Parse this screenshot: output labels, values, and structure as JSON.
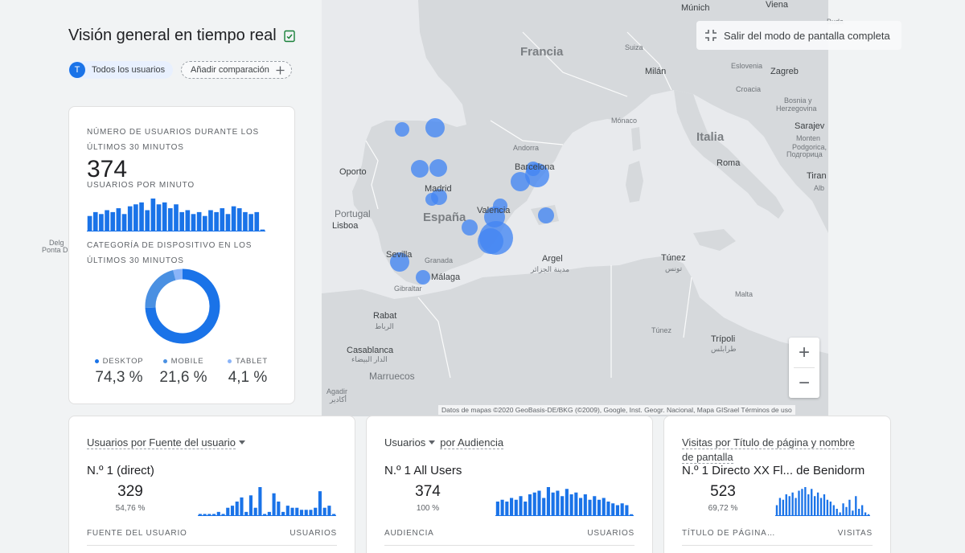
{
  "header": {
    "title": "Visión general en tiempo real",
    "chip_avatar": "T",
    "chip_label": "Todos los usuarios",
    "compare_label": "Añadir comparación"
  },
  "map": {
    "exit_fullscreen_label": "Salir del modo de pantalla completa",
    "zoom_in": "+",
    "zoom_out": "−",
    "attribution": "Datos de mapas ©2020 GeoBasis-DE/BKG (©2009), Google, Inst. Geogr. Nacional, Mapa GISrael   Términos de uso",
    "labels": {
      "munich": "Múnich",
      "viena": "Viena",
      "buda": "Buda",
      "francia": "Francia",
      "suiza": "Suiza",
      "eslovenia": "Eslovenia",
      "zagreb": "Zagreb",
      "milan": "Milán",
      "croacia": "Croacia",
      "bosnia1": "Bosnia y",
      "bosnia2": "Herzegovina",
      "monaco": "Mónaco",
      "sarajevo": "Sarajev",
      "montenegro": "Monten",
      "podgorica1": "Podgorica,",
      "podgorica2": "Подгорица",
      "italia": "Italia",
      "andorra": "Andorra",
      "barcelona": "Barcelona",
      "roma": "Roma",
      "tirana": "Tiran",
      "alb": "Alb",
      "oporto": "Oporto",
      "madrid": "Madrid",
      "portugal": "Portugal",
      "espana": "España",
      "valencia": "Valencia",
      "lisboa": "Lisboa",
      "sevilla": "Sevilla",
      "granada": "Granada",
      "malaga": "Málaga",
      "gibraltar": "Gibraltar",
      "argel1": "Argel",
      "argel2": "مدينة الجزائر",
      "tunez1": "Túnez",
      "tunez2": "تونس",
      "malta": "Malta",
      "rabat1": "Rabat",
      "rabat2": "الرباط",
      "tunez_country": "Túnez",
      "tripoli1": "Trípoli",
      "tripoli2": "طرابلس",
      "casablanca1": "Casablanca",
      "casablanca2": "الدار البيضاء",
      "marruecos": "Marruecos",
      "agadir1": "Agadir",
      "agadir2": "أكادير",
      "delgada1": "Delg",
      "delgada2": "Ponta D"
    },
    "bubble_color": "#4285f4"
  },
  "summary": {
    "users_caption": "NÚMERO DE USUARIOS DURANTE LOS ÚLTIMOS 30 MINUTOS",
    "users_value": "374",
    "per_minute_caption": "USUARIOS POR MINUTO",
    "per_minute_values": [
      8,
      10,
      9,
      11,
      10,
      12,
      9,
      13,
      14,
      15,
      11,
      17,
      14,
      15,
      12,
      14,
      10,
      11,
      9,
      10,
      8,
      11,
      10,
      12,
      9,
      13,
      12,
      10,
      9,
      10,
      1
    ],
    "device_caption": "CATEGORÍA DE DISPOSITIVO EN LOS ÚLTIMOS 30 MINUTOS",
    "devices": [
      {
        "label": "DESKTOP",
        "value": "74,3 %",
        "pct": 74.3,
        "color": "#1a73e8"
      },
      {
        "label": "MOBILE",
        "value": "21,6 %",
        "pct": 21.6,
        "color": "#4a90e2"
      },
      {
        "label": "TABLET",
        "value": "4,1 %",
        "pct": 4.1,
        "color": "#8ab4f8"
      }
    ]
  },
  "cards": [
    {
      "title_a": "Usuarios por Fuente del usuario",
      "title_b": "",
      "top": "N.º 1  (direct)",
      "value": "329",
      "pct": "54,76 %",
      "col_left": "FUENTE DEL USUARIO",
      "col_right": "USUARIOS",
      "bars": [
        1,
        1,
        1,
        1,
        2,
        1,
        4,
        5,
        7,
        9,
        2,
        10,
        4,
        14,
        1,
        2,
        11,
        7,
        2,
        5,
        4,
        4,
        3,
        3,
        3,
        4,
        12,
        4,
        5,
        1
      ]
    },
    {
      "title_a": "Usuarios",
      "title_b": "por Audiencia",
      "top": "N.º 1  All Users",
      "value": "374",
      "pct": "100 %",
      "col_left": "AUDIENCIA",
      "col_right": "USUARIOS",
      "bars": [
        8,
        9,
        8,
        10,
        9,
        11,
        8,
        12,
        13,
        14,
        10,
        16,
        13,
        14,
        11,
        15,
        12,
        13,
        10,
        12,
        9,
        11,
        9,
        10,
        8,
        7,
        6,
        7,
        6,
        1
      ]
    },
    {
      "title_a": "Visitas por Título de página y nombre de pantalla",
      "title_b": "",
      "top": "N.º 1  Directo XX Fl... de Benidorm",
      "value": "523",
      "pct": "69,72 %",
      "col_left": "TÍTULO DE PÁGINA…",
      "col_right": "VISITAS",
      "bars": [
        6,
        10,
        9,
        12,
        11,
        13,
        10,
        14,
        15,
        16,
        12,
        15,
        11,
        13,
        10,
        12,
        9,
        8,
        6,
        4,
        2,
        7,
        5,
        9,
        3,
        11,
        4,
        6,
        2,
        1
      ]
    }
  ]
}
